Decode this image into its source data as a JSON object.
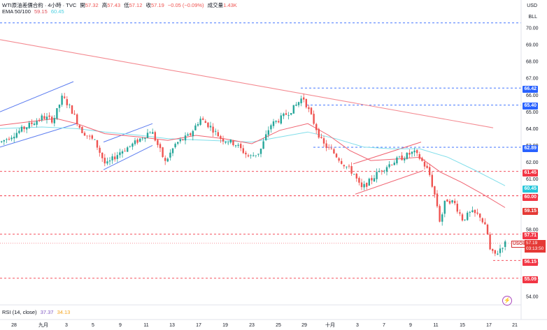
{
  "header": {
    "symbol_title": "WTI原油差價合約 · 4小時 · TVC",
    "open_label": "開",
    "open_value": "57.32",
    "high_label": "高",
    "high_value": "57.43",
    "low_label": "低",
    "low_value": "57.12",
    "close_label": "收",
    "close_value": "57.19",
    "change": "−0.05 (−0.09%)",
    "volume_label": "成交量",
    "volume_value": "1.43K"
  },
  "ema": {
    "label": "EMA 50/100",
    "value1": "59.15",
    "value2": "60.45"
  },
  "rsi": {
    "label": "RSI (14, close)",
    "value1": "37.37",
    "value2": "34.13"
  },
  "axis": {
    "currency": "USD",
    "unit": "BLL",
    "price_ticks": [
      "70.00",
      "69.00",
      "68.00",
      "67.00",
      "66.00",
      "65.00",
      "64.00",
      "63.00",
      "62.00",
      "61.00",
      "60.00",
      "59.00",
      "58.00",
      "57.00",
      "56.00",
      "55.00",
      "54.00"
    ],
    "time_ticks": [
      "28",
      "九月",
      "3",
      "5",
      "9",
      "11",
      "13",
      "17",
      "19",
      "23",
      "25",
      "29",
      "十月",
      "3",
      "7",
      "9",
      "11",
      "15",
      "17",
      "21"
    ]
  },
  "levels": {
    "l66_42": "66.42",
    "l65_40": "65.40",
    "l62_89": "62.89",
    "l61_45": "61.45",
    "l60_45": "60.45",
    "l60_00": "60.00",
    "l59_15": "59.15",
    "l57_71": "57.71",
    "l56_15": "56.15",
    "l55_09": "55.09"
  },
  "current": {
    "symbol": "USOIL",
    "price": "57.19",
    "countdown": "03:13:50"
  },
  "colors": {
    "up": "#26a69a",
    "down": "#ef5350",
    "blue_level": "#2962ff",
    "red_level": "#f23645",
    "ema_fast": "#f06270",
    "ema_slow": "#80deea",
    "trend_line": "#f48a91",
    "channel_blue": "#5b7cf0"
  }
}
